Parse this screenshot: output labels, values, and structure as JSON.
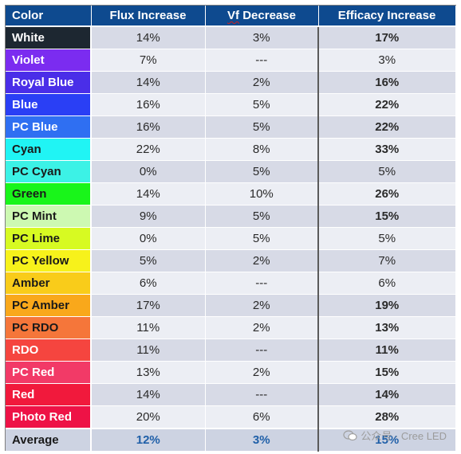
{
  "headers": {
    "color": "Color",
    "flux": "Flux Increase",
    "vf_prefix": "Vf",
    "vf_suffix": " Decrease",
    "efficacy": "Efficacy Increase"
  },
  "rows": [
    {
      "color": "White",
      "bg": "#1d2731",
      "fg": "#ffffff",
      "flux": "14%",
      "vf": "3%",
      "eff": "17%",
      "eff_bold": true
    },
    {
      "color": "Violet",
      "bg": "#7b2cf0",
      "fg": "#ffffff",
      "flux": "7%",
      "vf": "---",
      "eff": "3%",
      "eff_bold": false
    },
    {
      "color": "Royal Blue",
      "bg": "#4a2ee8",
      "fg": "#ffffff",
      "flux": "14%",
      "vf": "2%",
      "eff": "16%",
      "eff_bold": true
    },
    {
      "color": "Blue",
      "bg": "#2a3ff5",
      "fg": "#ffffff",
      "flux": "16%",
      "vf": "5%",
      "eff": "22%",
      "eff_bold": true
    },
    {
      "color": "PC Blue",
      "bg": "#2f6ff2",
      "fg": "#ffffff",
      "flux": "16%",
      "vf": "5%",
      "eff": "22%",
      "eff_bold": true
    },
    {
      "color": "Cyan",
      "bg": "#20f4f4",
      "fg": "#1a1a1a",
      "flux": "22%",
      "vf": "8%",
      "eff": "33%",
      "eff_bold": true
    },
    {
      "color": "PC Cyan",
      "bg": "#3cf2e6",
      "fg": "#1a1a1a",
      "flux": "0%",
      "vf": "5%",
      "eff": "5%",
      "eff_bold": false
    },
    {
      "color": "Green",
      "bg": "#19f51a",
      "fg": "#1a1a1a",
      "flux": "14%",
      "vf": "10%",
      "eff": "26%",
      "eff_bold": true
    },
    {
      "color": "PC Mint",
      "bg": "#cdf9b2",
      "fg": "#1a1a1a",
      "flux": "9%",
      "vf": "5%",
      "eff": "15%",
      "eff_bold": true
    },
    {
      "color": "PC Lime",
      "bg": "#d7fa22",
      "fg": "#1a1a1a",
      "flux": "0%",
      "vf": "5%",
      "eff": "5%",
      "eff_bold": false
    },
    {
      "color": "PC Yellow",
      "bg": "#f7f21b",
      "fg": "#1a1a1a",
      "flux": "5%",
      "vf": "2%",
      "eff": "7%",
      "eff_bold": false
    },
    {
      "color": "Amber",
      "bg": "#f9cc1a",
      "fg": "#1a1a1a",
      "flux": "6%",
      "vf": "---",
      "eff": "6%",
      "eff_bold": false
    },
    {
      "color": "PC Amber",
      "bg": "#f9a81b",
      "fg": "#1a1a1a",
      "flux": "17%",
      "vf": "2%",
      "eff": "19%",
      "eff_bold": true
    },
    {
      "color": "PC RDO",
      "bg": "#f5763a",
      "fg": "#1a1a1a",
      "flux": "11%",
      "vf": "2%",
      "eff": "13%",
      "eff_bold": true
    },
    {
      "color": "RDO",
      "bg": "#f5453f",
      "fg": "#ffffff",
      "flux": "11%",
      "vf": "---",
      "eff": "11%",
      "eff_bold": true
    },
    {
      "color": "PC Red",
      "bg": "#f23a67",
      "fg": "#ffffff",
      "flux": "13%",
      "vf": "2%",
      "eff": "15%",
      "eff_bold": true
    },
    {
      "color": "Red",
      "bg": "#f1193c",
      "fg": "#ffffff",
      "flux": "14%",
      "vf": "---",
      "eff": "14%",
      "eff_bold": true
    },
    {
      "color": "Photo Red",
      "bg": "#ee1246",
      "fg": "#ffffff",
      "flux": "20%",
      "vf": "6%",
      "eff": "28%",
      "eff_bold": true
    }
  ],
  "average": {
    "label": "Average",
    "flux": "12%",
    "vf": "3%",
    "eff": "15%"
  },
  "watermark": "公众号 · Cree LED"
}
